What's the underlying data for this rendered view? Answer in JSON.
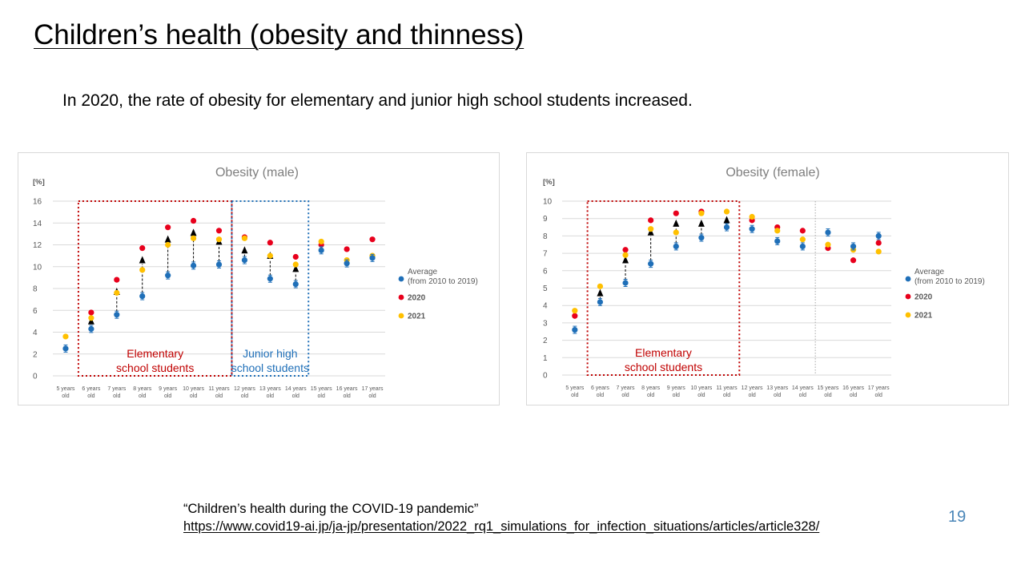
{
  "slide": {
    "title": "Children’s health (obesity and thinness)",
    "subtitle": "In 2020, the rate of obesity for elementary and junior high school students increased.",
    "citation_title": "“Children’s health during the COVID-19 pandemic”",
    "citation_url": "https://www.covid19-ai.jp/ja-jp/presentation/2022_rq1_simulations_for_infection_situations/articles/article328/",
    "page_number": "19"
  },
  "colors": {
    "average": "#1f6fb8",
    "y2020": "#e8001c",
    "y2021": "#ffc000",
    "elementary_box": "#c00000",
    "junior_box": "#1f6fb8",
    "grid": "#d9d9d9",
    "axis_text": "#595959"
  },
  "chart_data": [
    {
      "type": "scatter",
      "title": "Obesity (male)",
      "ylabel": "[%]",
      "ylim": [
        0,
        16
      ],
      "yticks": [
        0,
        2,
        4,
        6,
        8,
        10,
        12,
        14,
        16
      ],
      "grid": true,
      "legend_position": "right",
      "categories": [
        [
          "5 years",
          "old"
        ],
        [
          "6 years",
          "old"
        ],
        [
          "7 years",
          "old"
        ],
        [
          "8 years",
          "old"
        ],
        [
          "9 years",
          "old"
        ],
        [
          "10 years",
          "old"
        ],
        [
          "11 years",
          "old"
        ],
        [
          "12 years",
          "old"
        ],
        [
          "13 years",
          "old"
        ],
        [
          "14 years",
          "old"
        ],
        [
          "15 years",
          "old"
        ],
        [
          "16 years",
          "old"
        ],
        [
          "17 years",
          "old"
        ]
      ],
      "series": [
        {
          "name": "Average",
          "name_line2": "(from 2010 to 2019)",
          "key": "average",
          "values": [
            2.5,
            4.3,
            5.6,
            7.3,
            9.2,
            10.1,
            10.2,
            10.6,
            8.9,
            8.4,
            11.5,
            10.3,
            10.8
          ]
        },
        {
          "name": "2020",
          "key": "y2020",
          "values": [
            null,
            5.8,
            8.8,
            11.7,
            13.6,
            14.2,
            13.3,
            12.7,
            12.2,
            10.9,
            12.0,
            11.6,
            12.5
          ]
        },
        {
          "name": "2021",
          "key": "y2021",
          "values": [
            3.6,
            5.3,
            7.6,
            9.7,
            12.0,
            12.6,
            12.5,
            12.6,
            11.0,
            10.2,
            12.3,
            10.6,
            11.0
          ]
        }
      ],
      "arrows": [
        {
          "index": 1,
          "from": 4.3,
          "to": 5.3
        },
        {
          "index": 2,
          "from": 5.6,
          "to": 8.0
        },
        {
          "index": 3,
          "from": 7.3,
          "to": 10.9
        },
        {
          "index": 4,
          "from": 9.2,
          "to": 12.8
        },
        {
          "index": 5,
          "from": 10.1,
          "to": 13.4
        },
        {
          "index": 6,
          "from": 10.2,
          "to": 12.6
        },
        {
          "index": 7,
          "from": 10.6,
          "to": 11.8
        },
        {
          "index": 8,
          "from": 8.9,
          "to": 11.3
        },
        {
          "index": 9,
          "from": 8.4,
          "to": 10.1
        }
      ],
      "groups": [
        {
          "label_lines": [
            "Elementary",
            "school students"
          ],
          "first": 1,
          "last": 6,
          "color_key": "elementary_box"
        },
        {
          "label_lines": [
            "Junior high",
            "school students"
          ],
          "first": 7,
          "last": 9,
          "color_key": "junior_box"
        }
      ]
    },
    {
      "type": "scatter",
      "title": "Obesity (female)",
      "ylabel": "[%]",
      "ylim": [
        0,
        10
      ],
      "yticks": [
        0,
        1,
        2,
        3,
        4,
        5,
        6,
        7,
        8,
        9,
        10
      ],
      "grid": true,
      "legend_position": "right",
      "separator_after_index": 9,
      "categories": [
        [
          "5 years",
          "old"
        ],
        [
          "6 years",
          "old"
        ],
        [
          "7 years",
          "old"
        ],
        [
          "8 years",
          "old"
        ],
        [
          "9 years",
          "old"
        ],
        [
          "10 years",
          "old"
        ],
        [
          "11 years",
          "old"
        ],
        [
          "12 years",
          "old"
        ],
        [
          "13 years",
          "old"
        ],
        [
          "14 years",
          "old"
        ],
        [
          "15 years",
          "old"
        ],
        [
          "16 years",
          "old"
        ],
        [
          "17 years",
          "old"
        ]
      ],
      "series": [
        {
          "name": "Average",
          "name_line2": "(from 2010 to 2019)",
          "key": "average",
          "values": [
            2.6,
            4.2,
            5.3,
            6.4,
            7.4,
            7.9,
            8.5,
            8.4,
            7.7,
            7.4,
            8.2,
            7.4,
            8.0
          ]
        },
        {
          "name": "2020",
          "key": "y2020",
          "values": [
            3.4,
            null,
            7.2,
            8.9,
            9.3,
            9.4,
            null,
            8.9,
            8.5,
            8.3,
            7.3,
            6.6,
            7.6
          ]
        },
        {
          "name": "2021",
          "key": "y2021",
          "values": [
            3.7,
            5.1,
            6.9,
            8.4,
            8.2,
            9.3,
            9.4,
            9.1,
            8.3,
            7.8,
            7.5,
            7.2,
            7.1
          ]
        }
      ],
      "arrows": [
        {
          "index": 1,
          "from": 4.2,
          "to": 4.9
        },
        {
          "index": 2,
          "from": 5.3,
          "to": 6.8
        },
        {
          "index": 3,
          "from": 6.4,
          "to": 8.4
        },
        {
          "index": 4,
          "from": 7.4,
          "to": 8.9
        },
        {
          "index": 5,
          "from": 7.9,
          "to": 8.9
        },
        {
          "index": 6,
          "from": 8.5,
          "to": 9.1
        }
      ],
      "groups": [
        {
          "label_lines": [
            "Elementary",
            "school students"
          ],
          "first": 1,
          "last": 6,
          "color_key": "elementary_box"
        }
      ]
    }
  ]
}
